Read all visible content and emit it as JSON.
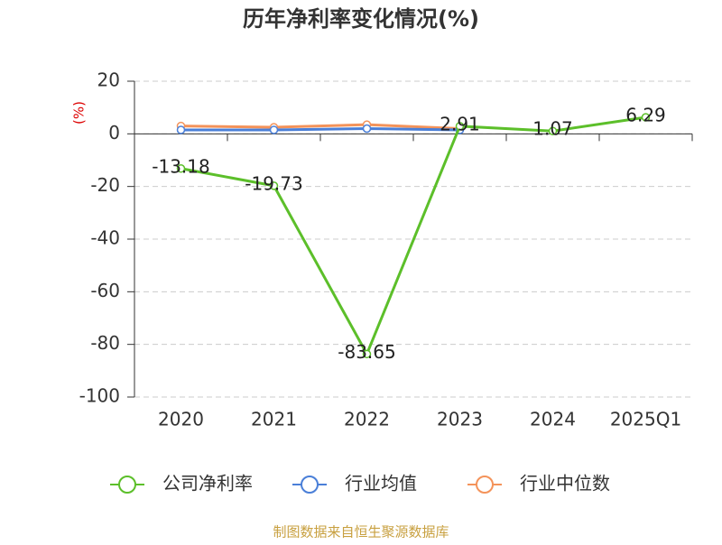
{
  "chart_data": {
    "type": "line",
    "title": "历年净利率变化情况(%)",
    "y_label": "(%)",
    "categories": [
      "2020",
      "2021",
      "2022",
      "2023",
      "2024",
      "2025Q1"
    ],
    "series": [
      {
        "name": "公司净利率",
        "color": "#5cbf2a",
        "values": [
          -13.18,
          -19.73,
          -83.65,
          2.91,
          1.07,
          6.29
        ],
        "show_labels": true
      },
      {
        "name": "行业均值",
        "color": "#4a7fd8",
        "values": [
          1.5,
          1.5,
          2,
          1.5,
          null,
          null
        ]
      },
      {
        "name": "行业中位数",
        "color": "#f4935a",
        "values": [
          3,
          2.5,
          3.5,
          2,
          null,
          null
        ]
      }
    ],
    "ylim": [
      -100,
      20
    ],
    "yticks": [
      -100,
      -80,
      -60,
      -40,
      -20,
      0,
      20
    ],
    "grid": true,
    "footer": "制图数据来自恒生聚源数据库"
  }
}
